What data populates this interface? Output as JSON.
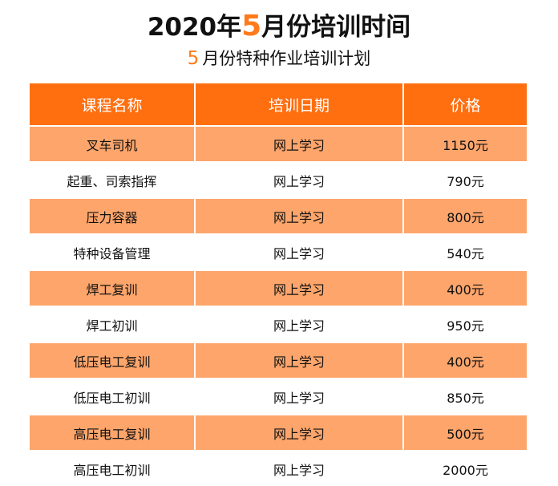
{
  "title": {
    "prefix": "2020年",
    "accent": "5",
    "suffix": "月份培训时间"
  },
  "subtitle": {
    "accent": "5",
    "text": "月份特种作业培训计划"
  },
  "colors": {
    "accent": "#ff7a1a",
    "header_bg": "#ff6f10",
    "row_highlight": "#fda56b"
  },
  "table": {
    "headers": [
      "课程名称",
      "培训日期",
      "价格"
    ],
    "rows": [
      [
        "叉车司机",
        "网上学习",
        "1150元"
      ],
      [
        "起重、司索指挥",
        "网上学习",
        "790元"
      ],
      [
        "压力容器",
        "网上学习",
        "800元"
      ],
      [
        "特种设备管理",
        "网上学习",
        "540元"
      ],
      [
        "焊工复训",
        "网上学习",
        "400元"
      ],
      [
        "焊工初训",
        "网上学习",
        "950元"
      ],
      [
        "低压电工复训",
        "网上学习",
        "400元"
      ],
      [
        "低压电工初训",
        "网上学习",
        "850元"
      ],
      [
        "高压电工复训",
        "网上学习",
        "500元"
      ],
      [
        "高压电工初训",
        "网上学习",
        "2000元"
      ]
    ]
  }
}
